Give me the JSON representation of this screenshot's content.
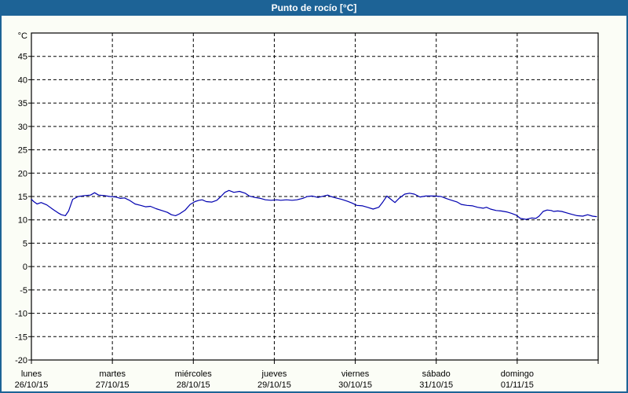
{
  "window": {
    "title": "Punto de rocío [°C]"
  },
  "colors": {
    "titlebar_bg": "#1d6396",
    "titlebar_text": "#ffffff",
    "page_bg": "#fbfdf6",
    "plot_bg": "#ffffff",
    "frame": "#000000",
    "grid": "#000000",
    "tick_label": "#000000",
    "line": "#0000b0",
    "border": "#1d6396"
  },
  "chart_data": {
    "type": "line",
    "title": "Punto de rocío [°C]",
    "ylabel": "°C",
    "ylim": [
      -20,
      50
    ],
    "y_ticks": [
      45,
      40,
      35,
      30,
      25,
      20,
      15,
      10,
      5,
      0,
      -5,
      -10,
      -15,
      -20
    ],
    "x_range_days": [
      0,
      7
    ],
    "grid": "dashed",
    "legend_position": "none",
    "x_axis": {
      "days": [
        {
          "name": "lunes",
          "date": "26/10/15"
        },
        {
          "name": "martes",
          "date": "27/10/15"
        },
        {
          "name": "miércoles",
          "date": "28/10/15"
        },
        {
          "name": "jueves",
          "date": "29/10/15"
        },
        {
          "name": "viernes",
          "date": "30/10/15"
        },
        {
          "name": "sábado",
          "date": "31/10/15"
        },
        {
          "name": "domingo",
          "date": "01/11/15"
        }
      ]
    },
    "series": [
      {
        "name": "Punto de rocío [°C]",
        "color": "#0000b0",
        "points": [
          [
            0.0,
            14.4
          ],
          [
            0.03,
            13.9
          ],
          [
            0.07,
            13.4
          ],
          [
            0.12,
            13.7
          ],
          [
            0.19,
            13.2
          ],
          [
            0.27,
            12.2
          ],
          [
            0.33,
            11.5
          ],
          [
            0.37,
            11.1
          ],
          [
            0.42,
            10.9
          ],
          [
            0.46,
            11.9
          ],
          [
            0.51,
            14.4
          ],
          [
            0.58,
            15.0
          ],
          [
            0.66,
            15.2
          ],
          [
            0.73,
            15.3
          ],
          [
            0.78,
            15.8
          ],
          [
            0.83,
            15.3
          ],
          [
            0.9,
            15.2
          ],
          [
            0.97,
            15.0
          ],
          [
            1.04,
            14.9
          ],
          [
            1.1,
            14.6
          ],
          [
            1.15,
            14.7
          ],
          [
            1.21,
            14.2
          ],
          [
            1.28,
            13.4
          ],
          [
            1.35,
            13.1
          ],
          [
            1.41,
            12.8
          ],
          [
            1.47,
            12.9
          ],
          [
            1.54,
            12.4
          ],
          [
            1.61,
            12.0
          ],
          [
            1.68,
            11.6
          ],
          [
            1.73,
            11.1
          ],
          [
            1.78,
            10.9
          ],
          [
            1.83,
            11.3
          ],
          [
            1.9,
            12.1
          ],
          [
            1.96,
            13.3
          ],
          [
            2.02,
            13.9
          ],
          [
            2.07,
            14.2
          ],
          [
            2.11,
            14.3
          ],
          [
            2.16,
            13.9
          ],
          [
            2.23,
            13.8
          ],
          [
            2.29,
            14.2
          ],
          [
            2.34,
            15.0
          ],
          [
            2.39,
            15.9
          ],
          [
            2.44,
            16.3
          ],
          [
            2.5,
            15.9
          ],
          [
            2.57,
            16.1
          ],
          [
            2.64,
            15.7
          ],
          [
            2.69,
            15.1
          ],
          [
            2.76,
            14.8
          ],
          [
            2.83,
            14.6
          ],
          [
            2.89,
            14.3
          ],
          [
            2.96,
            14.2
          ],
          [
            3.03,
            14.3
          ],
          [
            3.08,
            14.2
          ],
          [
            3.15,
            14.3
          ],
          [
            3.22,
            14.2
          ],
          [
            3.28,
            14.3
          ],
          [
            3.35,
            14.6
          ],
          [
            3.41,
            15.0
          ],
          [
            3.47,
            15.1
          ],
          [
            3.54,
            14.8
          ],
          [
            3.61,
            15.1
          ],
          [
            3.66,
            15.3
          ],
          [
            3.7,
            15.0
          ],
          [
            3.76,
            14.7
          ],
          [
            3.83,
            14.4
          ],
          [
            3.9,
            14.0
          ],
          [
            3.96,
            13.6
          ],
          [
            4.02,
            13.1
          ],
          [
            4.09,
            13.0
          ],
          [
            4.15,
            12.7
          ],
          [
            4.22,
            12.3
          ],
          [
            4.29,
            12.7
          ],
          [
            4.34,
            13.8
          ],
          [
            4.39,
            15.1
          ],
          [
            4.44,
            14.4
          ],
          [
            4.49,
            13.7
          ],
          [
            4.54,
            14.6
          ],
          [
            4.61,
            15.5
          ],
          [
            4.67,
            15.7
          ],
          [
            4.73,
            15.5
          ],
          [
            4.8,
            14.9
          ],
          [
            4.87,
            15.1
          ],
          [
            4.93,
            15.1
          ],
          [
            4.98,
            15.1
          ],
          [
            5.06,
            15.0
          ],
          [
            5.12,
            14.6
          ],
          [
            5.19,
            14.2
          ],
          [
            5.26,
            13.8
          ],
          [
            5.31,
            13.3
          ],
          [
            5.38,
            13.1
          ],
          [
            5.45,
            13.0
          ],
          [
            5.51,
            12.7
          ],
          [
            5.58,
            12.5
          ],
          [
            5.62,
            12.7
          ],
          [
            5.67,
            12.3
          ],
          [
            5.74,
            12.0
          ],
          [
            5.8,
            11.9
          ],
          [
            5.87,
            11.7
          ],
          [
            5.93,
            11.4
          ],
          [
            5.99,
            11.0
          ],
          [
            6.04,
            10.3
          ],
          [
            6.11,
            10.1
          ],
          [
            6.18,
            10.4
          ],
          [
            6.23,
            10.3
          ],
          [
            6.27,
            10.8
          ],
          [
            6.32,
            11.8
          ],
          [
            6.37,
            12.1
          ],
          [
            6.42,
            12.0
          ],
          [
            6.45,
            11.8
          ],
          [
            6.5,
            11.9
          ],
          [
            6.55,
            11.8
          ],
          [
            6.61,
            11.5
          ],
          [
            6.67,
            11.2
          ],
          [
            6.74,
            10.9
          ],
          [
            6.81,
            10.8
          ],
          [
            6.87,
            11.1
          ],
          [
            6.93,
            10.8
          ],
          [
            6.98,
            10.7
          ]
        ]
      }
    ]
  }
}
